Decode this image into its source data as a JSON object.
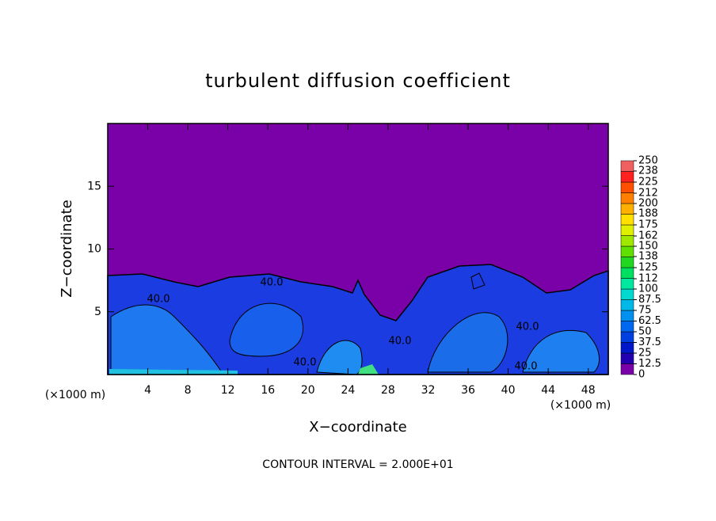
{
  "chart_data": {
    "type": "contour",
    "title": "turbulent diffusion coefficient",
    "x_label": "X−coordinate",
    "y_label": "Z−coordinate",
    "x_unit": "(×1000 m)",
    "y_unit": "(×1000 m)",
    "xlim": [
      0,
      50
    ],
    "xticks": [
      4,
      8,
      12,
      16,
      20,
      24,
      28,
      32,
      36,
      40,
      44,
      48
    ],
    "ylim": [
      0,
      20
    ],
    "yticks": [
      5,
      10,
      15
    ],
    "note": "CONTOUR INTERVAL = 2.000E+01",
    "contour_labels": [
      {
        "value": 40,
        "label": "40.0"
      },
      {
        "value": 40,
        "label": "40.0"
      },
      {
        "value": 40,
        "label": "40.0"
      },
      {
        "value": 40,
        "label": "40.0"
      },
      {
        "value": 40,
        "label": "40.0"
      },
      {
        "value": 40,
        "label": "40.0"
      }
    ],
    "colorbar": {
      "lim": [
        0,
        250
      ],
      "ticks": [
        0,
        12.5,
        25,
        37.5,
        50,
        62.5,
        75,
        87.5,
        100,
        112,
        125,
        138,
        150,
        162,
        175,
        188,
        200,
        212,
        225,
        238,
        250
      ],
      "colors": [
        "#7a00a8",
        "#2200b0",
        "#0018c8",
        "#0040e0",
        "#0068f0",
        "#0090f0",
        "#00b8e8",
        "#00d8d0",
        "#00e8a0",
        "#00e060",
        "#20d820",
        "#60e000",
        "#a0e800",
        "#e0f000",
        "#ffe000",
        "#ffb000",
        "#ff8000",
        "#ff5000",
        "#ff2020",
        "#f06060"
      ]
    }
  }
}
